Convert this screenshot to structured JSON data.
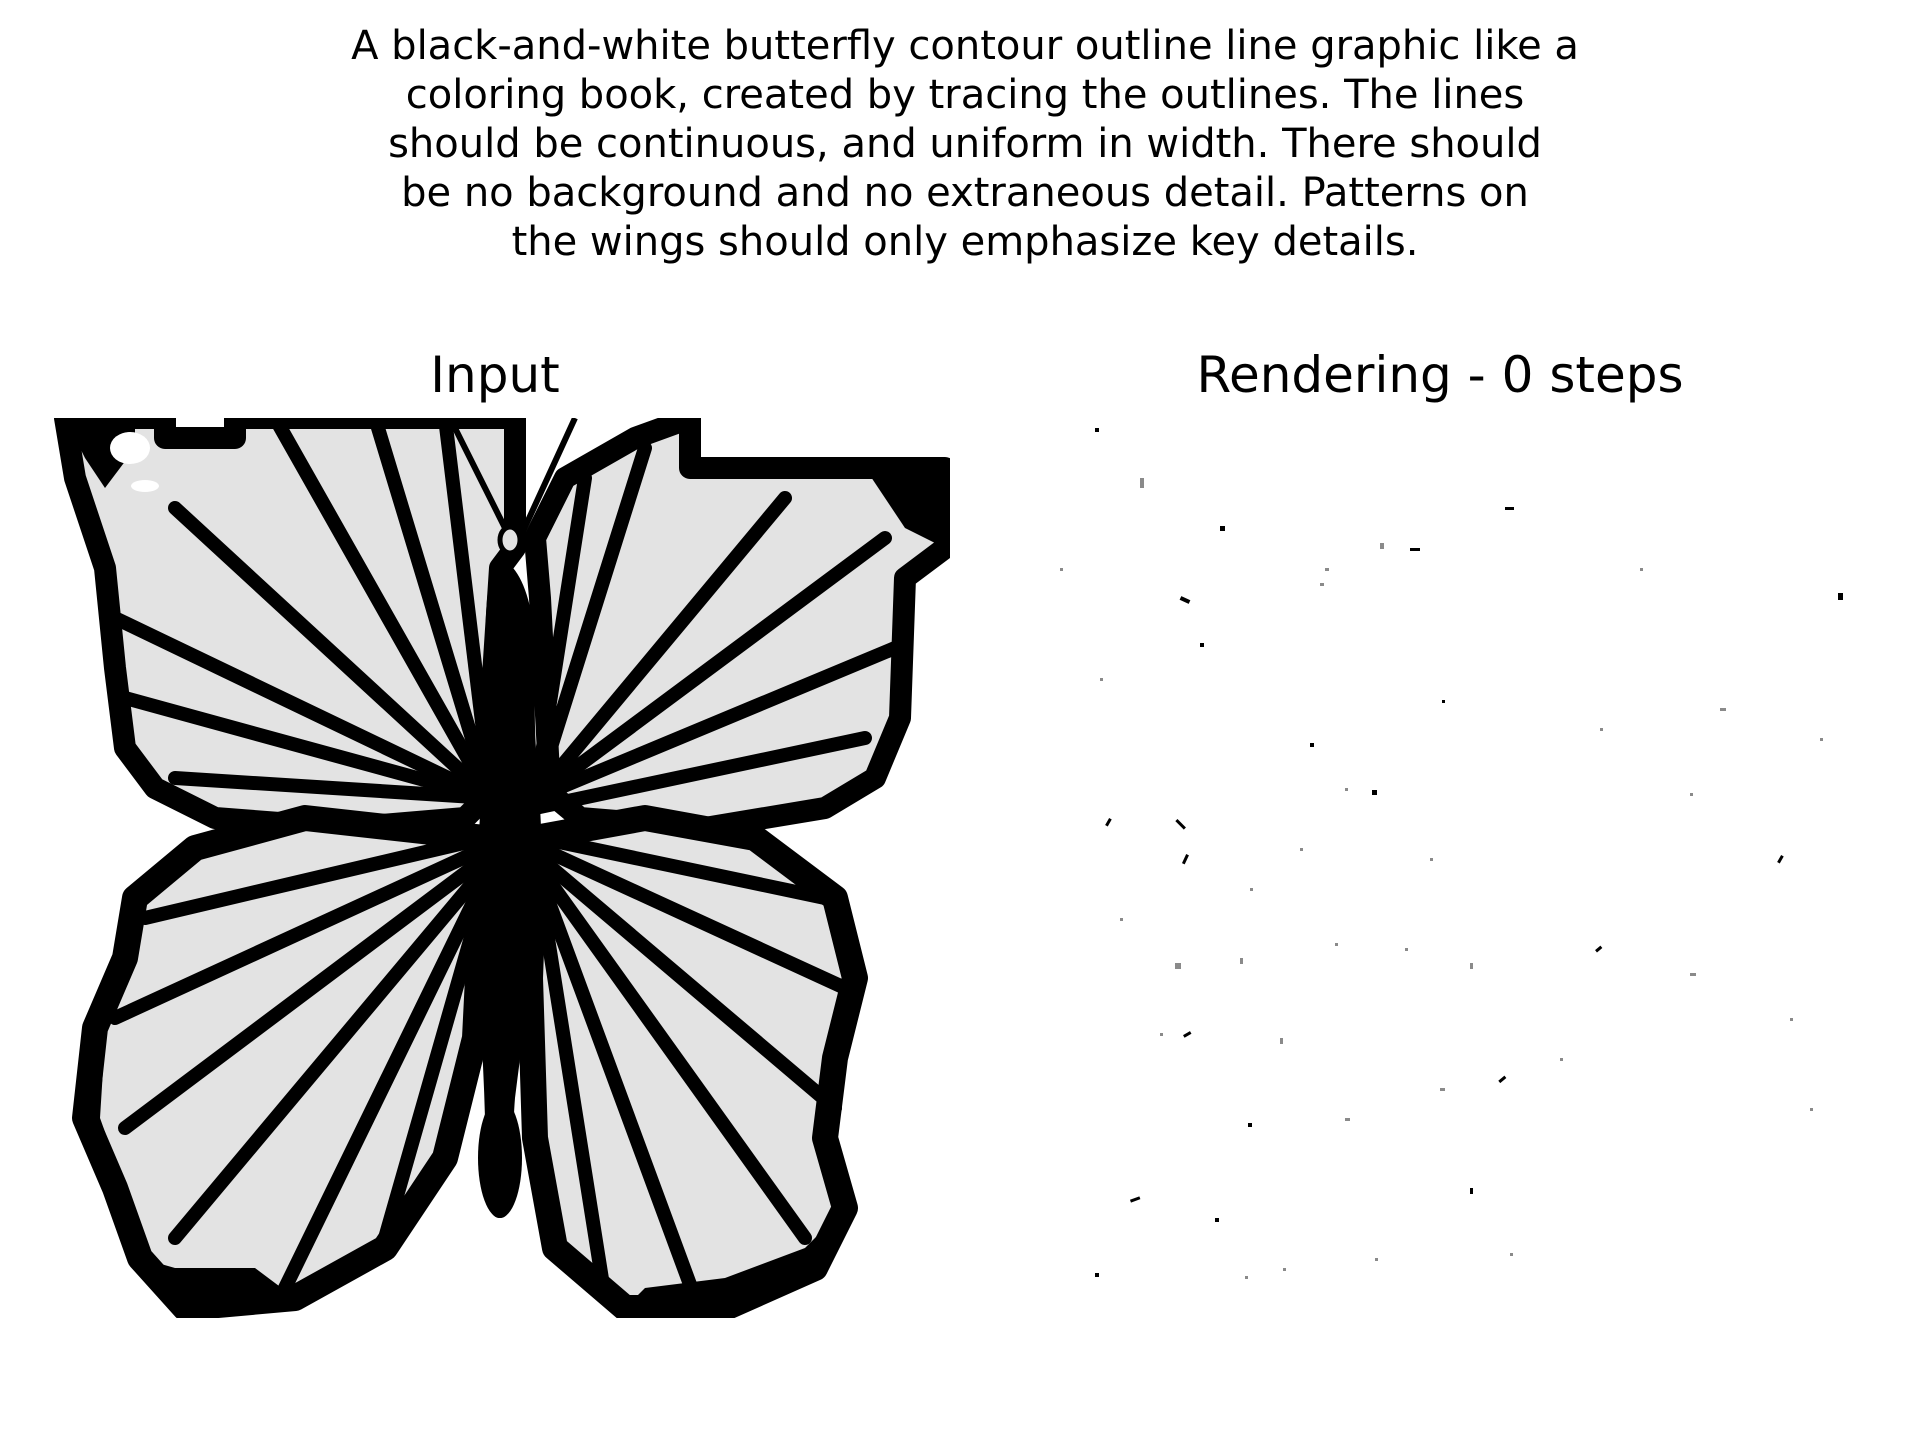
{
  "prompt": {
    "lines": [
      "A black-and-white butterfly contour outline line graphic like a",
      "coloring book, created by tracing the outlines. The lines",
      "should be continuous, and uniform in width. There should",
      "be no background and no extraneous detail. Patterns on",
      "the wings should only emphasize key details."
    ]
  },
  "panels": {
    "input": {
      "title": "Input",
      "image_subject": "butterfly-line-art"
    },
    "rendering": {
      "title": "Rendering - 0 steps",
      "image_subject": "sparse-noise-speckles"
    }
  },
  "colors": {
    "ink": "#000000",
    "wing_fill": "#e3e3e3",
    "background": "#ffffff",
    "speckle_grey": "#8a8a8a"
  }
}
